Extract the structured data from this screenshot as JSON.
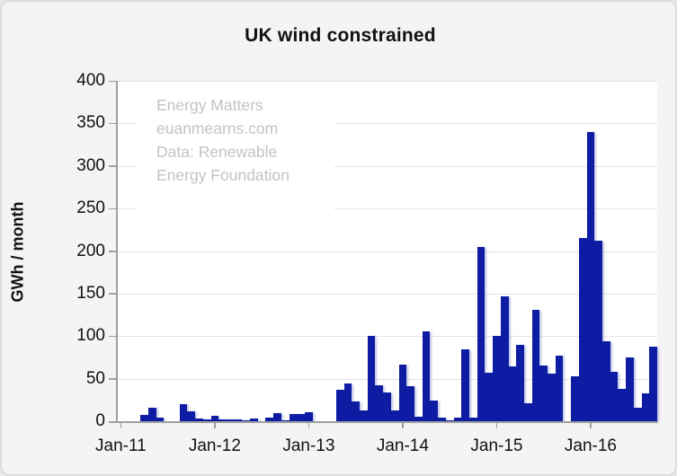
{
  "title": "UK wind constrained",
  "y_axis": {
    "label": "GWh / month",
    "ticks": [
      "0",
      "50",
      "100",
      "150",
      "200",
      "250",
      "300",
      "350",
      "400"
    ]
  },
  "x_axis": {
    "ticks": [
      "Jan-11",
      "Jan-12",
      "Jan-13",
      "Jan-14",
      "Jan-15",
      "Jan-16"
    ]
  },
  "watermark": {
    "line1": "Energy Matters",
    "line2": "euanmearns.com",
    "line3": "Data: Renewable",
    "line4": "Energy Foundation"
  },
  "colors": {
    "bar": "#0d1ca2",
    "background": "#f4f4f4",
    "plot_background": "#ffffff",
    "gridline": "#e3e3e3",
    "axis": "#9f9f9f",
    "text": "#111111",
    "watermark": "#c3c3c3"
  },
  "chart_data": {
    "type": "bar",
    "title": "UK wind constrained",
    "xlabel": "",
    "ylabel": "GWh / month",
    "ylim": [
      0,
      400
    ],
    "gridlines": "horizontal every 50, faint gray",
    "legend": "none",
    "bar_style": "contiguous monthly bars, dark blue, subtle shadow",
    "categories": [
      "Jan-11",
      "Feb-11",
      "Mar-11",
      "Apr-11",
      "May-11",
      "Jun-11",
      "Jul-11",
      "Aug-11",
      "Sep-11",
      "Oct-11",
      "Nov-11",
      "Dec-11",
      "Jan-12",
      "Feb-12",
      "Mar-12",
      "Apr-12",
      "May-12",
      "Jun-12",
      "Jul-12",
      "Aug-12",
      "Sep-12",
      "Oct-12",
      "Nov-12",
      "Dec-12",
      "Jan-13",
      "Feb-13",
      "Mar-13",
      "Apr-13",
      "May-13",
      "Jun-13",
      "Jul-13",
      "Aug-13",
      "Sep-13",
      "Oct-13",
      "Nov-13",
      "Dec-13",
      "Jan-14",
      "Feb-14",
      "Mar-14",
      "Apr-14",
      "May-14",
      "Jun-14",
      "Jul-14",
      "Aug-14",
      "Sep-14",
      "Oct-14",
      "Nov-14",
      "Dec-14",
      "Jan-15",
      "Feb-15",
      "Mar-15",
      "Apr-15",
      "May-15",
      "Jun-15",
      "Jul-15",
      "Aug-15",
      "Sep-15",
      "Oct-15",
      "Nov-15",
      "Dec-15",
      "Jan-16",
      "Feb-16",
      "Mar-16",
      "Apr-16",
      "May-16",
      "Jun-16",
      "Jul-16",
      "Aug-16",
      "Sep-16"
    ],
    "values": [
      0,
      0,
      0,
      7,
      16,
      4,
      0,
      0,
      20,
      12,
      3,
      2,
      6,
      2,
      2,
      2,
      1,
      3,
      0,
      4,
      10,
      1,
      8,
      8,
      11,
      0,
      0,
      0,
      37,
      44,
      23,
      13,
      100,
      42,
      34,
      13,
      67,
      41,
      5,
      106,
      24,
      4,
      1,
      4,
      84,
      4,
      205,
      57,
      100,
      147,
      64,
      90,
      21,
      131,
      65,
      56,
      77,
      0,
      53,
      215,
      340,
      212,
      94,
      58,
      38,
      75,
      16,
      33,
      88
    ]
  }
}
